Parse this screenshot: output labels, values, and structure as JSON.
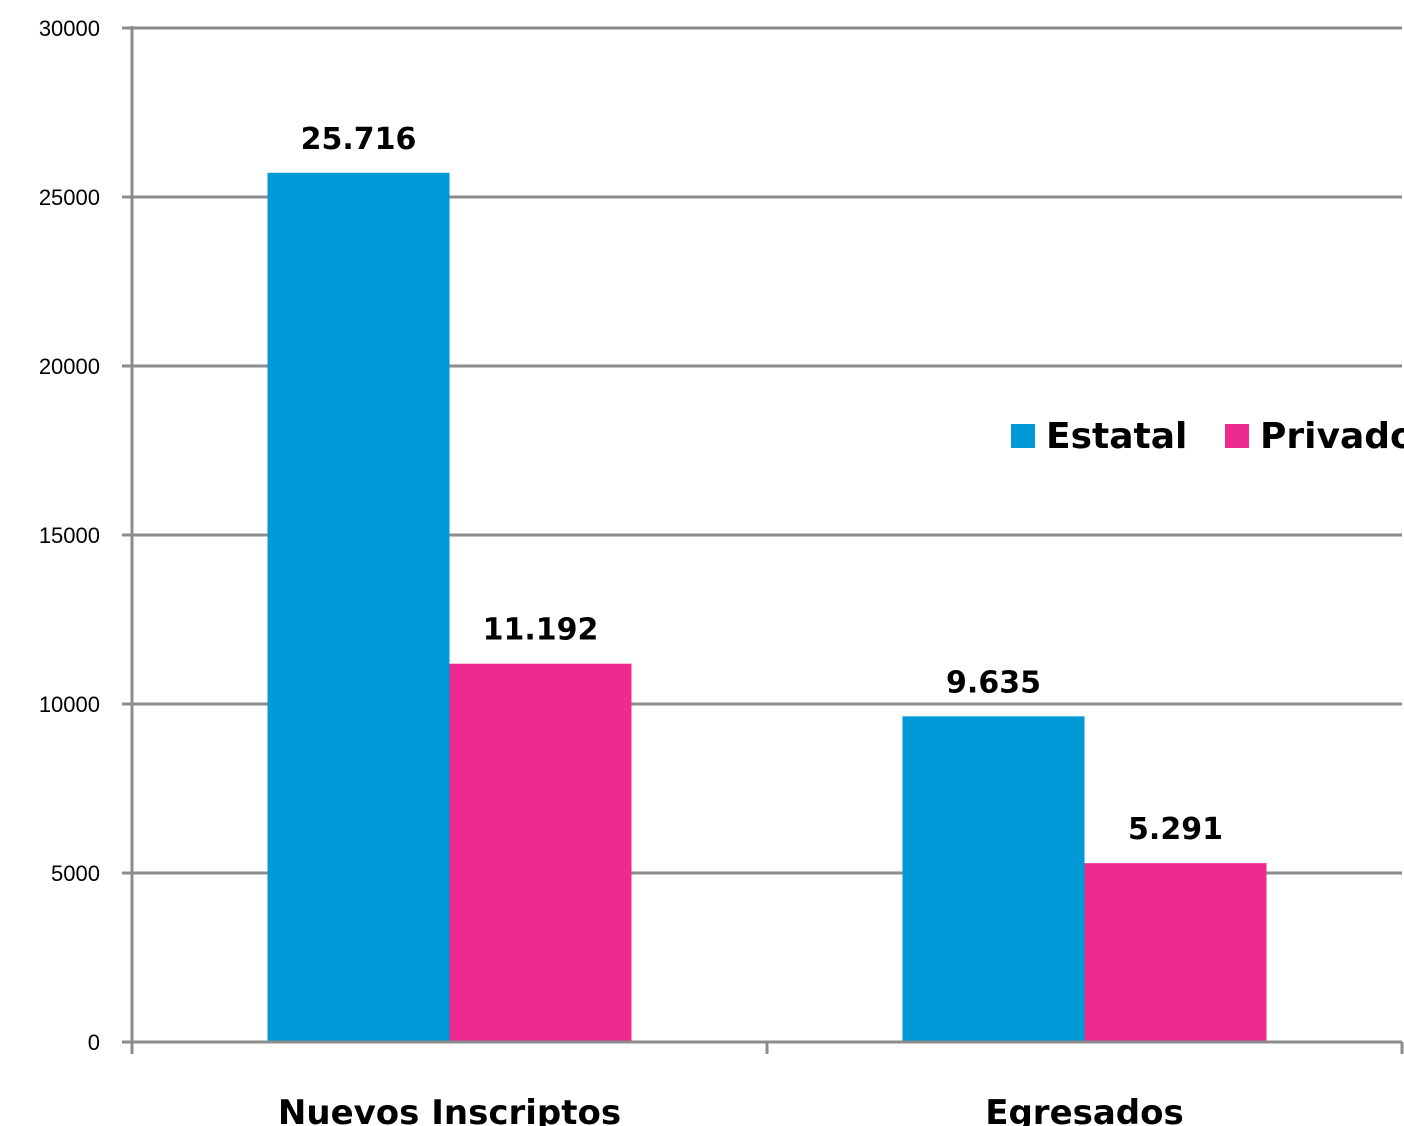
{
  "chart_data": {
    "type": "bar",
    "categories": [
      "Nuevos Inscriptos",
      "Egresados"
    ],
    "series": [
      {
        "name": "Estatal",
        "values": [
          25716,
          9635
        ],
        "labels": [
          "25.716",
          "9.635"
        ],
        "color": "#0099D8"
      },
      {
        "name": "Privado",
        "values": [
          11192,
          5291
        ],
        "labels": [
          "11.192",
          "5.291"
        ],
        "color": "#EC2A90"
      }
    ],
    "yticks": [
      "0",
      "5000",
      "10000",
      "15000",
      "20000",
      "25000",
      "30000"
    ],
    "ylim": [
      0,
      30000
    ],
    "title": "",
    "xlabel": "",
    "ylabel": "",
    "grid": true,
    "legend_position": "right"
  }
}
